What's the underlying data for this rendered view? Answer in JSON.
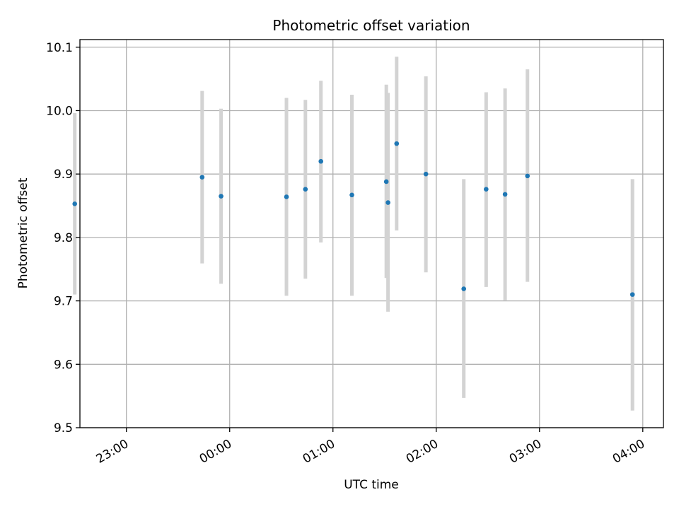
{
  "chart_data": {
    "type": "scatter",
    "title": "Photometric offset variation",
    "xlabel": "UTC time",
    "ylabel": "Photometric offset",
    "x_axis": {
      "kind": "time",
      "range": [
        "22:33",
        "04:12"
      ],
      "ticks": [
        "23:00",
        "00:00",
        "01:00",
        "02:00",
        "03:00",
        "04:00"
      ]
    },
    "ylim": [
      9.5,
      10.112
    ],
    "y_ticks": [
      "9.5",
      "9.6",
      "9.7",
      "9.8",
      "9.9",
      "10.0",
      "10.1"
    ],
    "grid": true,
    "series": [
      {
        "marker_color": "#1f77b4",
        "errorbar_color": "#d3d3d3",
        "points": [
          {
            "t": "22:30",
            "y": 9.853,
            "lo": 9.71,
            "hi": 9.996
          },
          {
            "t": "23:44",
            "y": 9.895,
            "lo": 9.759,
            "hi": 10.031
          },
          {
            "t": "23:55",
            "y": 9.865,
            "lo": 9.727,
            "hi": 10.003
          },
          {
            "t": "00:33",
            "y": 9.864,
            "lo": 9.708,
            "hi": 10.02
          },
          {
            "t": "00:44",
            "y": 9.876,
            "lo": 9.735,
            "hi": 10.017
          },
          {
            "t": "00:53",
            "y": 9.92,
            "lo": 9.792,
            "hi": 10.047
          },
          {
            "t": "01:11",
            "y": 9.867,
            "lo": 9.708,
            "hi": 10.025
          },
          {
            "t": "01:31",
            "y": 9.888,
            "lo": 9.736,
            "hi": 10.041
          },
          {
            "t": "01:32",
            "y": 9.855,
            "lo": 9.683,
            "hi": 10.028
          },
          {
            "t": "01:37",
            "y": 9.948,
            "lo": 9.811,
            "hi": 10.085
          },
          {
            "t": "01:54",
            "y": 9.9,
            "lo": 9.745,
            "hi": 10.054
          },
          {
            "t": "02:16",
            "y": 9.719,
            "lo": 9.547,
            "hi": 9.892
          },
          {
            "t": "02:29",
            "y": 9.876,
            "lo": 9.722,
            "hi": 10.029
          },
          {
            "t": "02:40",
            "y": 9.868,
            "lo": 9.701,
            "hi": 10.035
          },
          {
            "t": "02:53",
            "y": 9.897,
            "lo": 9.73,
            "hi": 10.065
          },
          {
            "t": "03:54",
            "y": 9.71,
            "lo": 9.527,
            "hi": 9.892
          }
        ]
      }
    ]
  }
}
